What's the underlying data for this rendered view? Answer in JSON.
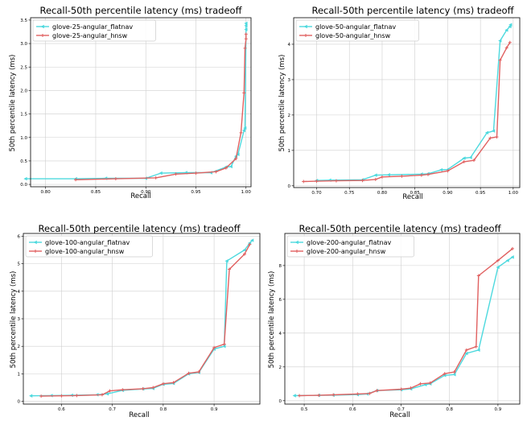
{
  "figure": {
    "panels": [
      {
        "title": "Recall-50th percentile latency (ms) tradeoff",
        "xlabel": "Recall",
        "ylabel": "50th percentile latency (ms)"
      },
      {
        "title": "Recall-50th percentile latency (ms) tradeoff",
        "xlabel": "Recall",
        "ylabel": "50th percentile latency (ms)"
      },
      {
        "title": "Recall-50th percentile latency (ms) tradeoff",
        "xlabel": "Recall",
        "ylabel": "50th percentile latency (ms)"
      },
      {
        "title": "Recall-50th percentile latency (ms) tradeoff",
        "xlabel": "Recall",
        "ylabel": "50th percentile latency (ms)"
      }
    ]
  },
  "chart_data": [
    {
      "type": "line",
      "title": "Recall-50th percentile latency (ms) tradeoff",
      "xlabel": "Recall",
      "ylabel": "50th percentile latency (ms)",
      "xlim": [
        0.785,
        1.005
      ],
      "ylim": [
        -0.05,
        3.55
      ],
      "xticks": [
        0.8,
        0.85,
        0.9,
        0.95,
        1.0
      ],
      "xtick_labels": [
        "0.80",
        "0.85",
        "0.90",
        "0.95",
        "1.00"
      ],
      "yticks": [
        0,
        0.5,
        1.0,
        1.5,
        2.0,
        2.5,
        3.0,
        3.5
      ],
      "ytick_labels": [
        "0.0",
        "0.5",
        "1.0",
        "1.5",
        "2.0",
        "2.5",
        "3.0",
        "3.5"
      ],
      "grid": true,
      "legend_position": "top-left",
      "series": [
        {
          "name": "glove-25-angular_flatnav",
          "color": "#4dd9de",
          "marker": "<",
          "points": [
            [
              0.78,
              0.12
            ],
            [
              0.83,
              0.12
            ],
            [
              0.86,
              0.13
            ],
            [
              0.9,
              0.13
            ],
            [
              0.915,
              0.24
            ],
            [
              0.94,
              0.25
            ],
            [
              0.965,
              0.25
            ],
            [
              0.98,
              0.37
            ],
            [
              0.985,
              0.38
            ],
            [
              0.99,
              0.6
            ],
            [
              0.992,
              0.64
            ],
            [
              0.998,
              1.15
            ],
            [
              0.999,
              1.2
            ],
            [
              1.0,
              3.3
            ],
            [
              1.0,
              3.38
            ],
            [
              1.0,
              3.43
            ]
          ]
        },
        {
          "name": "glove-25-angular_hnsw",
          "color": "#e06060",
          "marker": "+",
          "points": [
            [
              0.83,
              0.1
            ],
            [
              0.87,
              0.12
            ],
            [
              0.91,
              0.14
            ],
            [
              0.93,
              0.22
            ],
            [
              0.95,
              0.24
            ],
            [
              0.97,
              0.27
            ],
            [
              0.98,
              0.35
            ],
            [
              0.99,
              0.55
            ],
            [
              0.995,
              1.1
            ],
            [
              0.998,
              1.95
            ],
            [
              0.999,
              2.9
            ],
            [
              1.0,
              3.1
            ],
            [
              1.0,
              3.2
            ]
          ]
        }
      ]
    },
    {
      "type": "line",
      "title": "Recall-50th percentile latency (ms) tradeoff",
      "xlabel": "Recall",
      "ylabel": "50th percentile latency (ms)",
      "xlim": [
        0.665,
        1.01
      ],
      "ylim": [
        -0.05,
        4.75
      ],
      "xticks": [
        0.7,
        0.75,
        0.8,
        0.85,
        0.9,
        0.95,
        1.0
      ],
      "xtick_labels": [
        "0.70",
        "0.75",
        "0.80",
        "0.85",
        "0.90",
        "0.95",
        "1.00"
      ],
      "yticks": [
        0,
        1,
        2,
        3,
        4
      ],
      "ytick_labels": [
        "0",
        "1",
        "2",
        "3",
        "4"
      ],
      "grid": true,
      "legend_position": "top-left",
      "series": [
        {
          "name": "glove-50-angular_flatnav",
          "color": "#4dd9de",
          "marker": "<",
          "points": [
            [
              0.7,
              0.15
            ],
            [
              0.72,
              0.16
            ],
            [
              0.77,
              0.17
            ],
            [
              0.79,
              0.3
            ],
            [
              0.81,
              0.31
            ],
            [
              0.86,
              0.33
            ],
            [
              0.87,
              0.34
            ],
            [
              0.89,
              0.45
            ],
            [
              0.9,
              0.46
            ],
            [
              0.925,
              0.78
            ],
            [
              0.935,
              0.8
            ],
            [
              0.96,
              1.5
            ],
            [
              0.97,
              1.55
            ],
            [
              0.98,
              4.1
            ],
            [
              0.99,
              4.4
            ],
            [
              0.995,
              4.5
            ],
            [
              0.996,
              4.55
            ]
          ]
        },
        {
          "name": "glove-50-angular_hnsw",
          "color": "#e06060",
          "marker": "+",
          "points": [
            [
              0.68,
              0.12
            ],
            [
              0.7,
              0.13
            ],
            [
              0.73,
              0.14
            ],
            [
              0.77,
              0.15
            ],
            [
              0.79,
              0.18
            ],
            [
              0.8,
              0.25
            ],
            [
              0.83,
              0.27
            ],
            [
              0.86,
              0.3
            ],
            [
              0.87,
              0.32
            ],
            [
              0.9,
              0.42
            ],
            [
              0.925,
              0.68
            ],
            [
              0.94,
              0.72
            ],
            [
              0.965,
              1.35
            ],
            [
              0.975,
              1.38
            ],
            [
              0.98,
              3.55
            ],
            [
              0.99,
              3.9
            ],
            [
              0.995,
              4.05
            ]
          ]
        }
      ]
    },
    {
      "type": "line",
      "title": "Recall-50th percentile latency (ms) tradeoff",
      "xlabel": "Recall",
      "ylabel": "50th percentile latency (ms)",
      "xlim": [
        0.525,
        0.99
      ],
      "ylim": [
        -0.1,
        6.1
      ],
      "xticks": [
        0.6,
        0.7,
        0.8,
        0.9
      ],
      "xtick_labels": [
        "0.6",
        "0.7",
        "0.8",
        "0.9"
      ],
      "yticks": [
        0,
        1,
        2,
        3,
        4,
        5,
        6
      ],
      "ytick_labels": [
        "0",
        "1",
        "2",
        "3",
        "4",
        "5",
        "6"
      ],
      "grid": true,
      "legend_position": "top-left",
      "series": [
        {
          "name": "glove-100-angular_flatnav",
          "color": "#4dd9de",
          "marker": "<",
          "points": [
            [
              0.54,
              0.2
            ],
            [
              0.58,
              0.21
            ],
            [
              0.62,
              0.22
            ],
            [
              0.67,
              0.24
            ],
            [
              0.69,
              0.27
            ],
            [
              0.72,
              0.4
            ],
            [
              0.76,
              0.45
            ],
            [
              0.78,
              0.47
            ],
            [
              0.8,
              0.62
            ],
            [
              0.82,
              0.65
            ],
            [
              0.85,
              1.0
            ],
            [
              0.87,
              1.05
            ],
            [
              0.9,
              1.9
            ],
            [
              0.92,
              2.0
            ],
            [
              0.925,
              5.1
            ],
            [
              0.96,
              5.5
            ],
            [
              0.97,
              5.75
            ],
            [
              0.975,
              5.85
            ]
          ]
        },
        {
          "name": "glove-100-angular_hnsw",
          "color": "#e06060",
          "marker": "+",
          "points": [
            [
              0.56,
              0.19
            ],
            [
              0.6,
              0.2
            ],
            [
              0.63,
              0.21
            ],
            [
              0.68,
              0.24
            ],
            [
              0.695,
              0.38
            ],
            [
              0.72,
              0.42
            ],
            [
              0.76,
              0.46
            ],
            [
              0.78,
              0.5
            ],
            [
              0.8,
              0.64
            ],
            [
              0.82,
              0.68
            ],
            [
              0.85,
              1.02
            ],
            [
              0.87,
              1.07
            ],
            [
              0.9,
              1.95
            ],
            [
              0.92,
              2.08
            ],
            [
              0.93,
              4.8
            ],
            [
              0.96,
              5.35
            ],
            [
              0.97,
              5.7
            ]
          ]
        }
      ]
    },
    {
      "type": "line",
      "title": "Recall-50th percentile latency (ms) tradeoff",
      "xlabel": "Recall",
      "ylabel": "50th percentile latency (ms)",
      "xlim": [
        0.46,
        0.945
      ],
      "ylim": [
        -0.2,
        9.9
      ],
      "xticks": [
        0.5,
        0.6,
        0.7,
        0.8,
        0.9
      ],
      "xtick_labels": [
        "0.5",
        "0.6",
        "0.7",
        "0.8",
        "0.9"
      ],
      "yticks": [
        0,
        2,
        4,
        6,
        8
      ],
      "ytick_labels": [
        "0",
        "2",
        "4",
        "6",
        "8"
      ],
      "grid": true,
      "legend_position": "top-left",
      "series": [
        {
          "name": "glove-200-angular_flatnav",
          "color": "#4dd9de",
          "marker": "<",
          "points": [
            [
              0.48,
              0.3
            ],
            [
              0.53,
              0.32
            ],
            [
              0.56,
              0.33
            ],
            [
              0.61,
              0.36
            ],
            [
              0.63,
              0.4
            ],
            [
              0.65,
              0.6
            ],
            [
              0.7,
              0.65
            ],
            [
              0.72,
              0.7
            ],
            [
              0.75,
              0.95
            ],
            [
              0.76,
              1.0
            ],
            [
              0.79,
              1.5
            ],
            [
              0.81,
              1.55
            ],
            [
              0.835,
              2.8
            ],
            [
              0.86,
              3.0
            ],
            [
              0.9,
              7.9
            ],
            [
              0.92,
              8.3
            ],
            [
              0.93,
              8.5
            ]
          ]
        },
        {
          "name": "glove-200-angular_hnsw",
          "color": "#e06060",
          "marker": "+",
          "points": [
            [
              0.49,
              0.3
            ],
            [
              0.53,
              0.32
            ],
            [
              0.56,
              0.35
            ],
            [
              0.61,
              0.4
            ],
            [
              0.635,
              0.43
            ],
            [
              0.65,
              0.6
            ],
            [
              0.7,
              0.68
            ],
            [
              0.72,
              0.75
            ],
            [
              0.74,
              1.0
            ],
            [
              0.76,
              1.05
            ],
            [
              0.79,
              1.6
            ],
            [
              0.81,
              1.7
            ],
            [
              0.835,
              3.0
            ],
            [
              0.855,
              3.2
            ],
            [
              0.86,
              7.4
            ],
            [
              0.9,
              8.3
            ],
            [
              0.93,
              9.0
            ]
          ]
        }
      ]
    }
  ]
}
